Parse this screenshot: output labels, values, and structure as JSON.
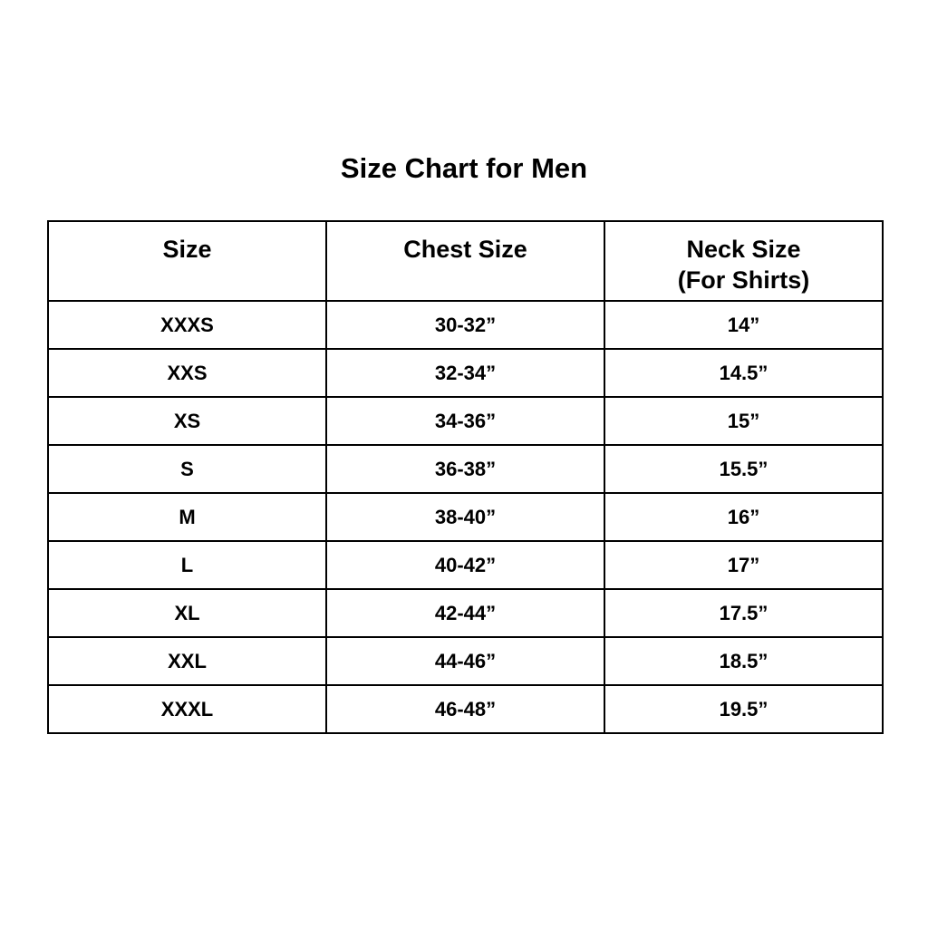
{
  "title": "Size Chart for Men",
  "headers": {
    "size": "Size",
    "chest": "Chest Size",
    "neck_line1": "Neck Size",
    "neck_line2": "(For Shirts)"
  },
  "rows": [
    {
      "size": "XXXS",
      "chest": "30-32”",
      "neck": "14”"
    },
    {
      "size": "XXS",
      "chest": "32-34”",
      "neck": "14.5”"
    },
    {
      "size": "XS",
      "chest": "34-36”",
      "neck": "15”"
    },
    {
      "size": "S",
      "chest": "36-38”",
      "neck": "15.5”"
    },
    {
      "size": "M",
      "chest": "38-40”",
      "neck": "16”"
    },
    {
      "size": "L",
      "chest": "40-42”",
      "neck": "17”"
    },
    {
      "size": "XL",
      "chest": "42-44”",
      "neck": "17.5”"
    },
    {
      "size": "XXL",
      "chest": "44-46”",
      "neck": "18.5”"
    },
    {
      "size": "XXXL",
      "chest": "46-48”",
      "neck": "19.5”"
    }
  ]
}
